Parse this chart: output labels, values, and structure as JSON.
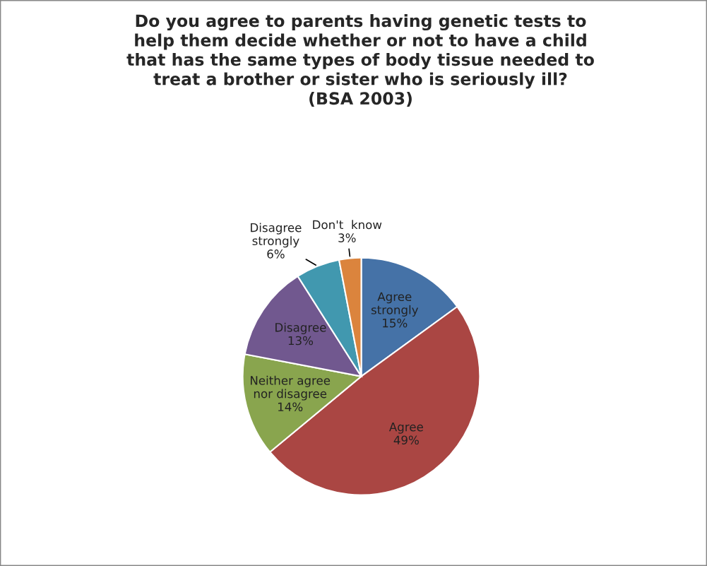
{
  "chart_data": {
    "type": "pie",
    "title": "Do you agree to parents having genetic tests to\nhelp them decide whether or not to have a child\nthat has the same types of body tissue needed to\ntreat a brother or sister who is seriously ill?\n(BSA 2003)",
    "categories": [
      "Agree\nstrongly",
      "Agree",
      "Neither agree\nnor disagree",
      "Disagree",
      "Disagree\nstrongly",
      "Don't  know"
    ],
    "values": [
      15,
      49,
      14,
      13,
      6,
      3
    ],
    "colors": [
      "#4572a7",
      "#aa4643",
      "#89a54e",
      "#71588f",
      "#4198af",
      "#db843d"
    ],
    "value_labels": [
      "15%",
      "49%",
      "14%",
      "13%",
      "6%",
      "3%"
    ]
  }
}
